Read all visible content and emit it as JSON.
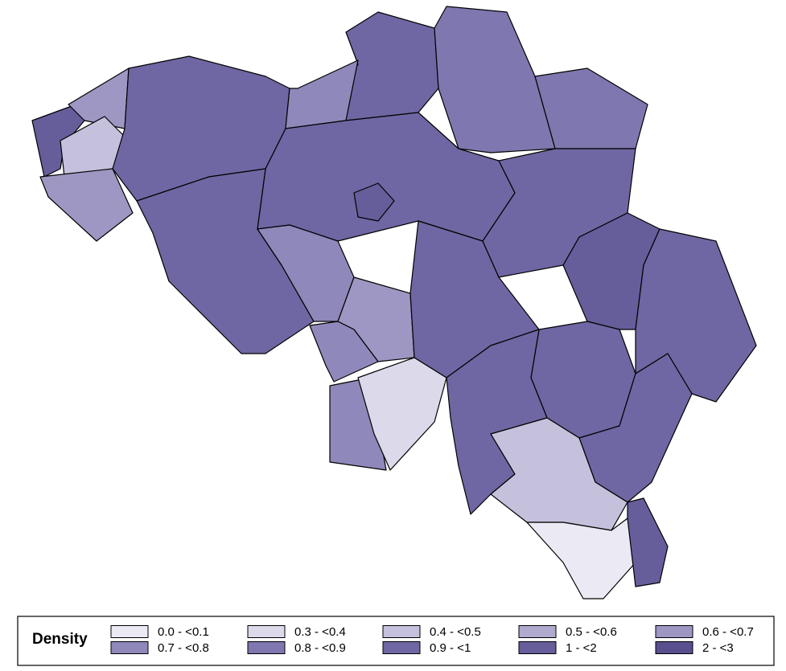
{
  "legend": {
    "title": "Density",
    "classes": [
      {
        "label": "0.0 - <0.1",
        "color": "#ebe9f3"
      },
      {
        "label": "0.3 - <0.4",
        "color": "#dcd9ea"
      },
      {
        "label": "0.4 - <0.5",
        "color": "#c5c0dc"
      },
      {
        "label": "0.5 - <0.6",
        "color": "#b0aacf"
      },
      {
        "label": "0.6 - <0.7",
        "color": "#9e97c3"
      },
      {
        "label": "0.7 - <0.8",
        "color": "#8f88ba"
      },
      {
        "label": "0.8 - <0.9",
        "color": "#7f77af"
      },
      {
        "label": "0.9 - <1",
        "color": "#6f67a3"
      },
      {
        "label": "1 - <2",
        "color": "#665d9b"
      },
      {
        "label": "2 - <3",
        "color": "#594e8e"
      }
    ]
  }
}
